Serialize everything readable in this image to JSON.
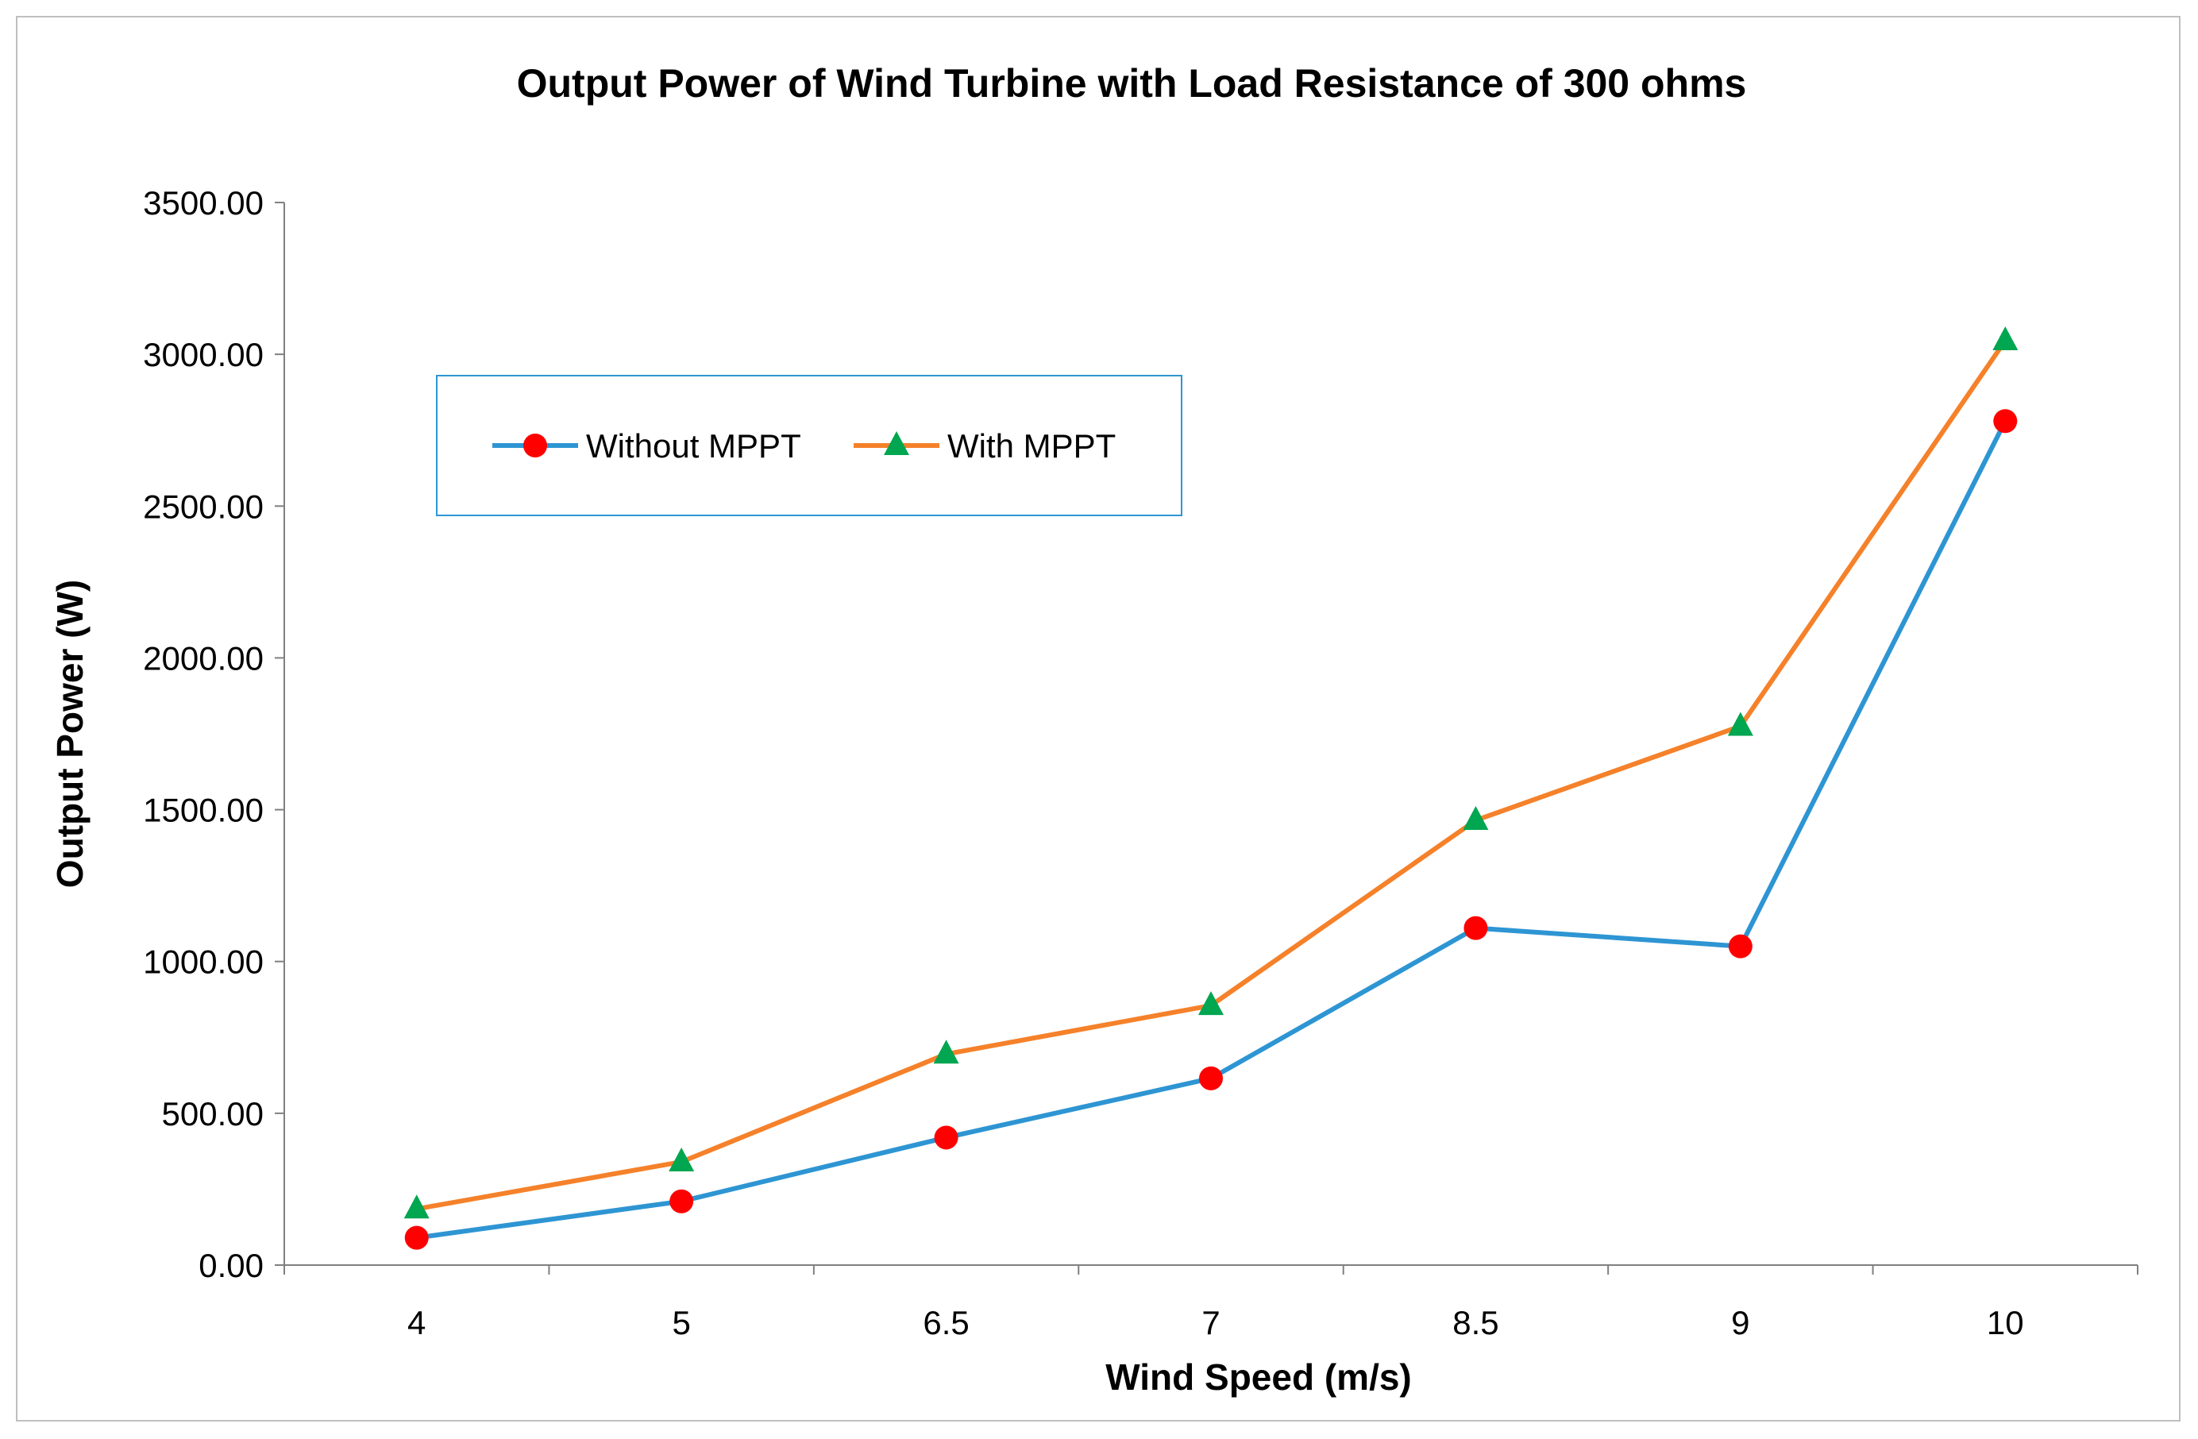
{
  "chart_data": {
    "type": "line",
    "title": "Output Power of Wind Turbine with Load Resistance of 300 ohms",
    "xlabel": "Wind Speed (m/s)",
    "ylabel": "Output Power (W)",
    "categories": [
      "4",
      "5",
      "6.5",
      "7",
      "8.5",
      "9",
      "10"
    ],
    "ylim": [
      0,
      3500
    ],
    "yticks": [
      0,
      500,
      1000,
      1500,
      2000,
      2500,
      3000,
      3500
    ],
    "ytick_labels": [
      "0.00",
      "500.00",
      "1000.00",
      "1500.00",
      "2000.00",
      "2500.00",
      "3000.00",
      "3500.00"
    ],
    "grid": false,
    "legend_position": "upper-left",
    "series": [
      {
        "name": "Without MPPT",
        "values": [
          90,
          210,
          420,
          615,
          1110,
          1050,
          2780
        ],
        "line_color": "#2e95d3",
        "marker": "circle",
        "marker_color": "#ff0000"
      },
      {
        "name": "With MPPT",
        "values": [
          185,
          340,
          695,
          855,
          1465,
          1775,
          3045
        ],
        "line_color": "#f5812a",
        "marker": "triangle",
        "marker_color": "#00a650"
      }
    ]
  }
}
